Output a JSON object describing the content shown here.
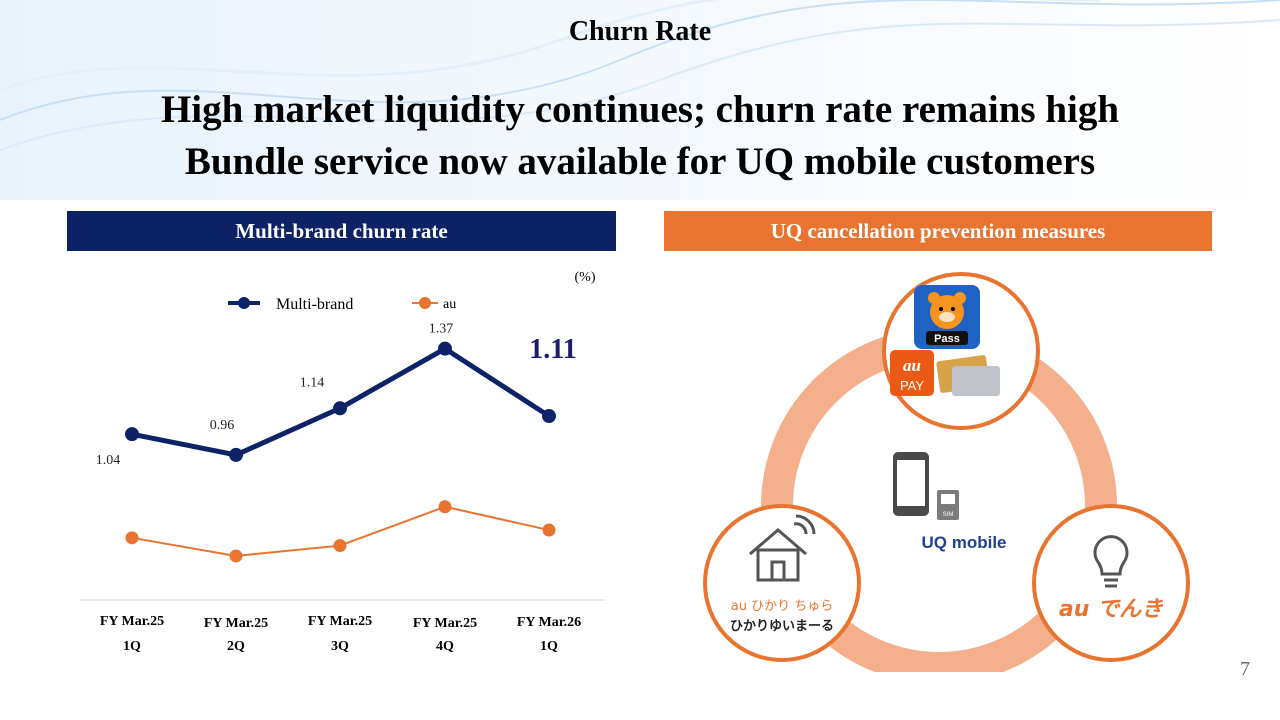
{
  "header": {
    "slide_label": "Churn Rate",
    "headline_line1": "High market liquidity continues; churn rate remains high",
    "headline_line2": "Bundle service now available for UQ mobile customers"
  },
  "left_panel": {
    "title": "Multi-brand churn rate"
  },
  "right_panel": {
    "title": "UQ cancellation prevention measures",
    "items": [
      {
        "name": "Pass",
        "label": "Pass"
      },
      {
        "name": "au PAY",
        "label_top": "au",
        "label_bottom": "PAY"
      },
      {
        "name": "home",
        "label_line1": "au ひかり ちゅら",
        "label_line2": "ひかりゆいまーる"
      },
      {
        "name": "electricity",
        "label": "au でんき"
      },
      {
        "name": "UQ mobile",
        "label": "UQ mobile",
        "sim_label": "SIM"
      }
    ]
  },
  "chart_data": {
    "type": "line",
    "unit_label": "(%)",
    "categories": [
      [
        "FY Mar.25",
        "1Q"
      ],
      [
        "FY Mar.25",
        "2Q"
      ],
      [
        "FY Mar.25",
        "3Q"
      ],
      [
        "FY Mar.25",
        "4Q"
      ],
      [
        "FY Mar.26",
        "1Q"
      ]
    ],
    "legend_position": "top",
    "series": [
      {
        "name": "Multi-brand",
        "values": [
          1.04,
          0.96,
          1.14,
          1.37,
          1.11
        ],
        "color": "#0d2366"
      },
      {
        "name": "au",
        "values": [
          0.64,
          0.57,
          0.61,
          0.76,
          0.67
        ],
        "color": "#e8742f"
      }
    ],
    "data_labels": [
      "1.04",
      "0.96",
      "1.14",
      "1.37",
      "1.11"
    ],
    "ylim": [
      0.4,
      1.5
    ],
    "grid": false
  },
  "page_number": "7"
}
